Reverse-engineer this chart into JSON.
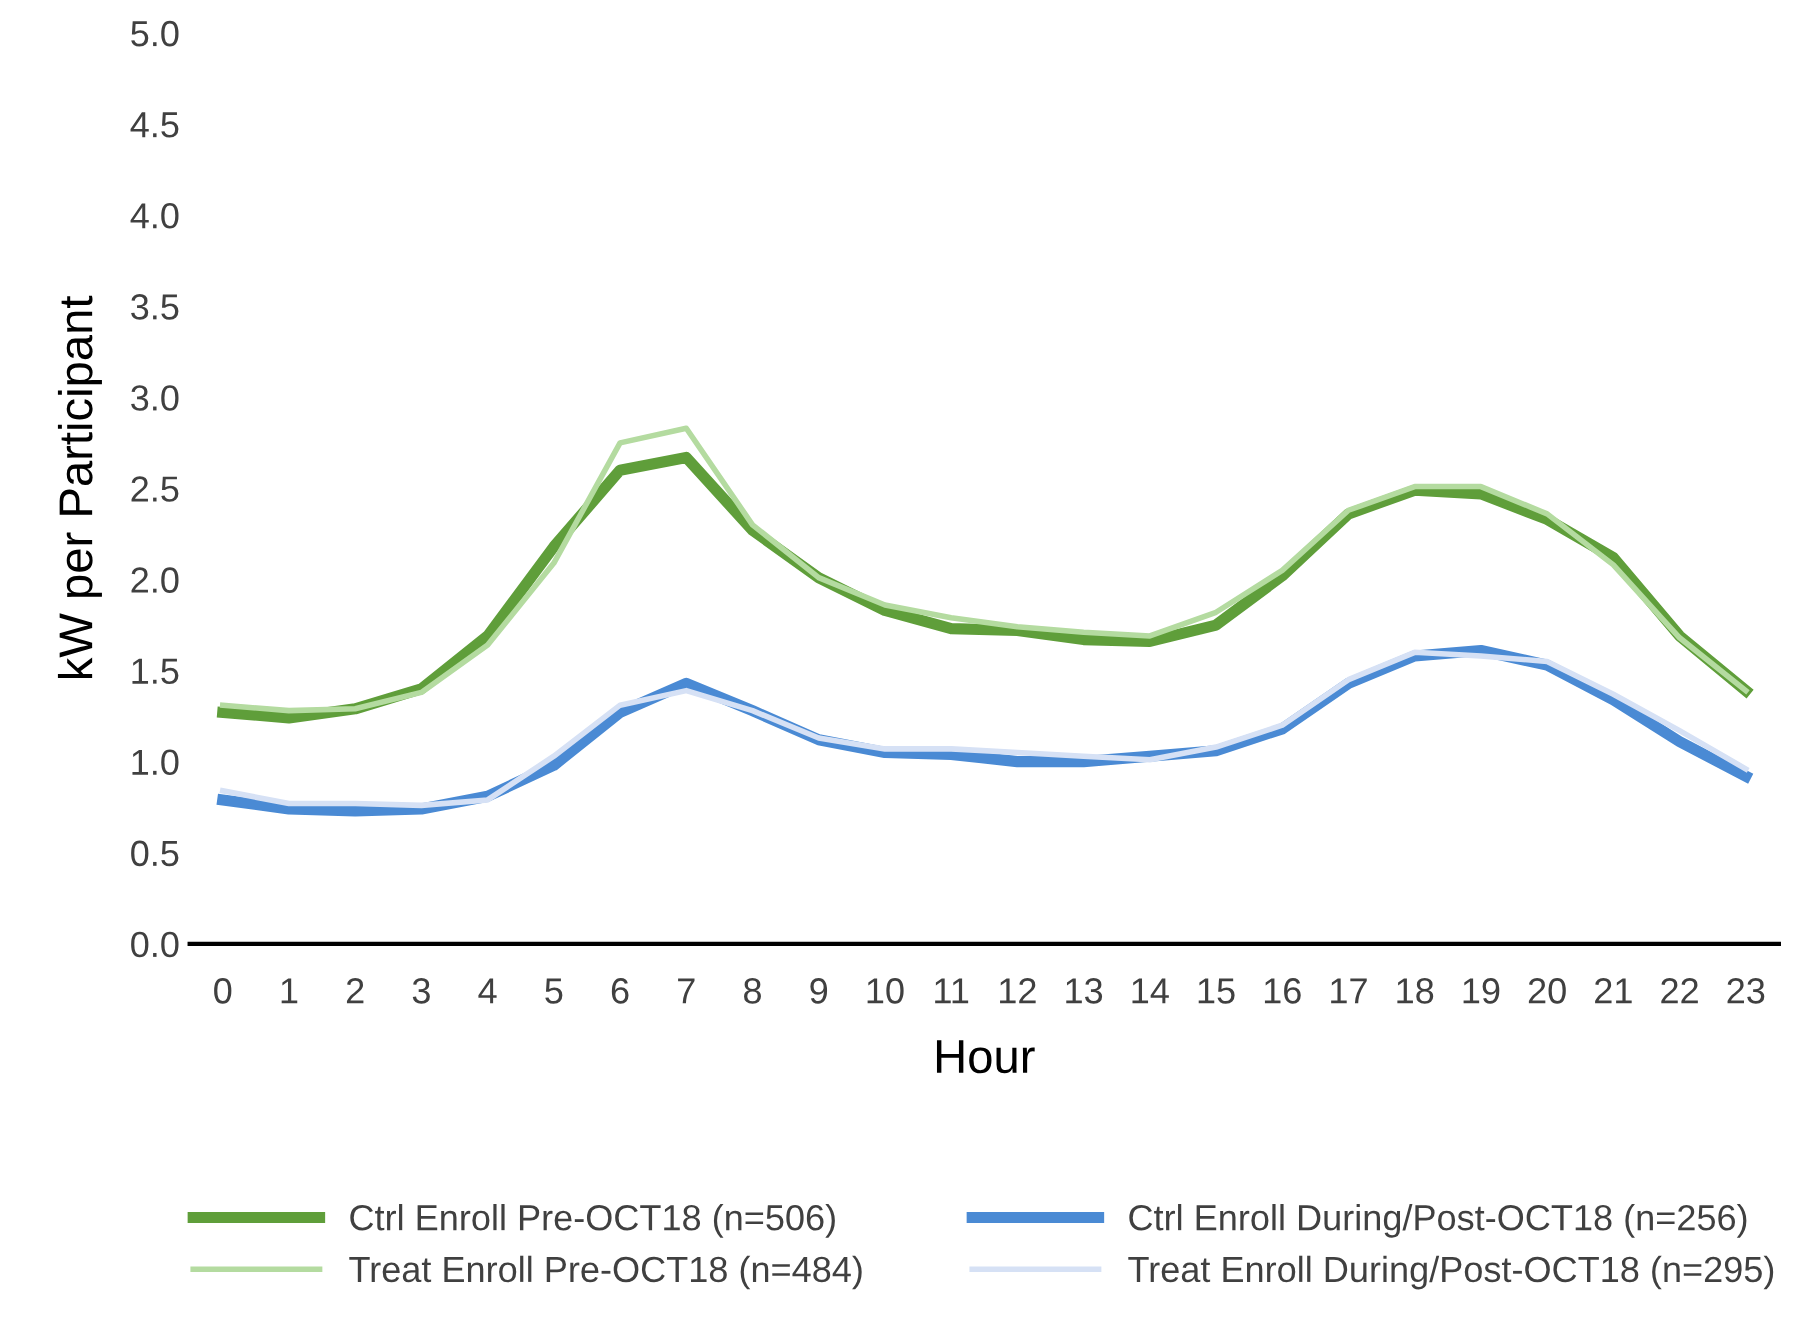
{
  "chart_data": {
    "type": "line",
    "xlabel": "Hour",
    "ylabel": "kW per Participant",
    "categories": [
      "0",
      "1",
      "2",
      "3",
      "4",
      "5",
      "6",
      "7",
      "8",
      "9",
      "10",
      "11",
      "12",
      "13",
      "14",
      "15",
      "16",
      "17",
      "18",
      "19",
      "20",
      "21",
      "22",
      "23"
    ],
    "ylim": [
      0,
      5
    ],
    "yticks": [
      {
        "value": 0,
        "label": "0.0"
      },
      {
        "value": 0.5,
        "label": "0.5"
      },
      {
        "value": 1,
        "label": "1.0"
      },
      {
        "value": 1.5,
        "label": "1.5"
      },
      {
        "value": 2,
        "label": "2.0"
      },
      {
        "value": 2.5,
        "label": "2.5"
      },
      {
        "value": 3,
        "label": "3.0"
      },
      {
        "value": 3.5,
        "label": "3.5"
      },
      {
        "value": 4,
        "label": "4.0"
      },
      {
        "value": 4.5,
        "label": "4.5"
      },
      {
        "value": 5,
        "label": "5.0"
      }
    ],
    "grid": false,
    "legend": "bottom",
    "marker": "none",
    "line_style": "solid",
    "series": [
      {
        "name": "Ctrl Enroll Pre-OCT18 (n=506)",
        "color": "#5f9e3a",
        "values": [
          1.27,
          1.24,
          1.29,
          1.4,
          1.69,
          2.18,
          2.6,
          2.67,
          2.27,
          2.01,
          1.83,
          1.73,
          1.72,
          1.67,
          1.66,
          1.75,
          2.02,
          2.36,
          2.49,
          2.47,
          2.33,
          2.12,
          1.69,
          1.39
        ]
      },
      {
        "name": "Ctrl Enroll During/Post-OCT18 (n=256)",
        "color": "#4a8ad4",
        "values": [
          0.79,
          0.74,
          0.73,
          0.74,
          0.81,
          0.98,
          1.27,
          1.43,
          1.28,
          1.12,
          1.05,
          1.04,
          1.0,
          1.0,
          1.03,
          1.06,
          1.18,
          1.43,
          1.58,
          1.61,
          1.53,
          1.34,
          1.11,
          0.92
        ]
      },
      {
        "name": "Treat Enroll Pre-OCT18 (n=484)",
        "color": "#b4dba0",
        "values": [
          1.31,
          1.28,
          1.29,
          1.38,
          1.64,
          2.09,
          2.75,
          2.83,
          2.3,
          2.01,
          1.86,
          1.79,
          1.74,
          1.71,
          1.69,
          1.82,
          2.05,
          2.38,
          2.51,
          2.51,
          2.36,
          2.08,
          1.68,
          1.39
        ]
      },
      {
        "name": "Treat Enroll During/Post-OCT18 (n=295)",
        "color": "#d6e1f5",
        "values": [
          0.84,
          0.77,
          0.77,
          0.76,
          0.79,
          1.03,
          1.31,
          1.39,
          1.28,
          1.13,
          1.07,
          1.07,
          1.05,
          1.03,
          1.01,
          1.08,
          1.2,
          1.45,
          1.6,
          1.58,
          1.55,
          1.37,
          1.17,
          0.96
        ]
      }
    ]
  }
}
